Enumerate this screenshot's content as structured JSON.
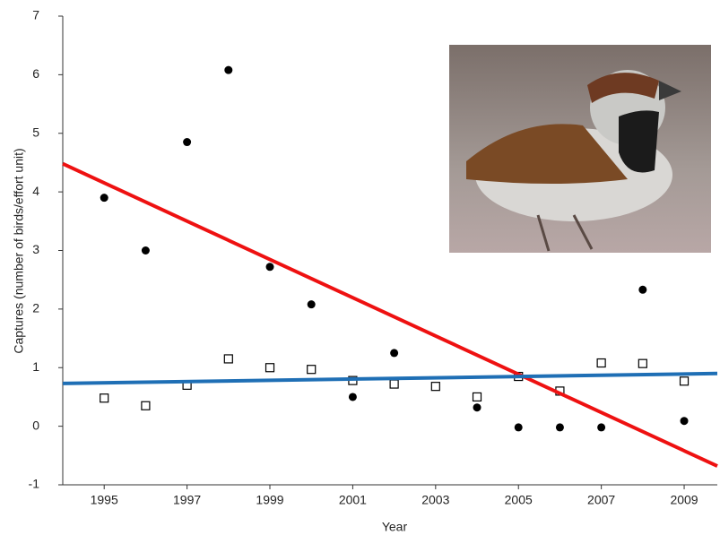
{
  "chart_data": {
    "type": "scatter",
    "x_label": "Year",
    "y_label": "Captures (number of birds/effort unit)",
    "x": [
      1995,
      1996,
      1997,
      1998,
      1999,
      2000,
      2001,
      2002,
      2003,
      2004,
      2005,
      2006,
      2007,
      2008,
      2009
    ],
    "series": [
      {
        "marker": "filled-circle",
        "color": "#000000",
        "values": [
          3.9,
          3.0,
          4.85,
          6.08,
          2.72,
          2.08,
          0.5,
          1.25,
          null,
          0.32,
          -0.02,
          -0.02,
          -0.02,
          2.33,
          0.09
        ]
      },
      {
        "marker": "open-square",
        "color": "#000000",
        "values": [
          0.48,
          0.35,
          0.7,
          1.15,
          1.0,
          0.97,
          0.78,
          0.72,
          0.68,
          0.5,
          0.85,
          0.6,
          1.08,
          1.07,
          0.77
        ]
      }
    ],
    "trend_lines": [
      {
        "color": "#ee1111",
        "x": [
          1994,
          2009.8
        ],
        "values": [
          4.48,
          -0.68
        ]
      },
      {
        "color": "#1f6fb5",
        "x": [
          1994,
          2009.8
        ],
        "values": [
          0.73,
          0.9
        ]
      }
    ],
    "xlim": [
      1994,
      2009.8
    ],
    "xticks": [
      1995,
      1997,
      1999,
      2001,
      2003,
      2005,
      2007,
      2009
    ],
    "ylim": [
      -1,
      7
    ],
    "yticks": [
      -1,
      0,
      1,
      2,
      3,
      4,
      5,
      6,
      7
    ],
    "grid": false
  }
}
